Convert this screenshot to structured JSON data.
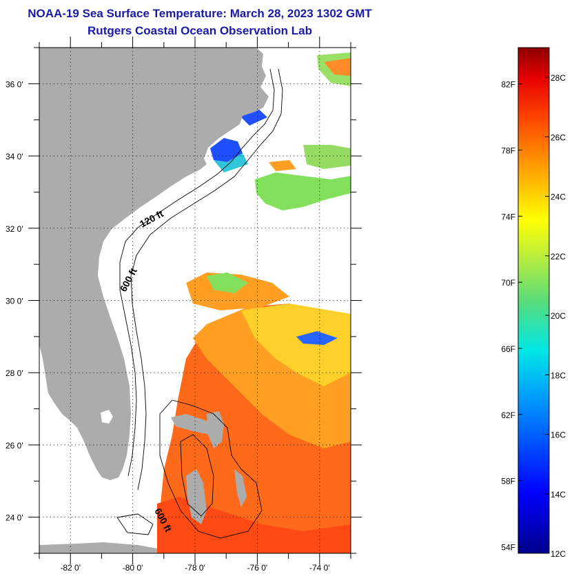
{
  "title": "NOAA-19 Sea Surface Temperature:  March 28, 2023 1302 GMT",
  "subtitle": "Rutgers Coastal Ocean Observation Lab",
  "map": {
    "lon_range": [
      -83,
      -73
    ],
    "lat_range": [
      23,
      37
    ],
    "lat_ticks": [
      {
        "value": 24,
        "label": "24 0'"
      },
      {
        "value": 26,
        "label": "26 0'"
      },
      {
        "value": 28,
        "label": "28 0'"
      },
      {
        "value": 30,
        "label": "30 0'"
      },
      {
        "value": 32,
        "label": "32 0'"
      },
      {
        "value": 34,
        "label": "34 0'"
      },
      {
        "value": 36,
        "label": "36 0'"
      }
    ],
    "lon_ticks": [
      {
        "value": -82,
        "label": "-82 0'"
      },
      {
        "value": -80,
        "label": "-80 0'"
      },
      {
        "value": -78,
        "label": "-78 0'"
      },
      {
        "value": -76,
        "label": "-76 0'"
      },
      {
        "value": -74,
        "label": "-74 0'"
      }
    ],
    "contour_labels": {
      "c120": "120 ft",
      "c600a": "600 ft",
      "c600b": "600 ft"
    },
    "colors": {
      "land": "#acacac",
      "warm": "#ff5a14",
      "mid": "#ffa01e",
      "cool": "#ffd21e",
      "green": "#78dc5a",
      "blue": "#1e50ff"
    }
  },
  "colorbar": {
    "range_c": [
      12,
      29
    ],
    "celsius_labels": [
      {
        "value": 12,
        "label": "12C"
      },
      {
        "value": 14,
        "label": "14C"
      },
      {
        "value": 16,
        "label": "16C"
      },
      {
        "value": 18,
        "label": "18C"
      },
      {
        "value": 20,
        "label": "20C"
      },
      {
        "value": 22,
        "label": "22C"
      },
      {
        "value": 24,
        "label": "24C"
      },
      {
        "value": 26,
        "label": "26C"
      },
      {
        "value": 28,
        "label": "28C"
      }
    ],
    "fahrenheit_labels": [
      {
        "value": 54,
        "label": "54F"
      },
      {
        "value": 58,
        "label": "58F"
      },
      {
        "value": 62,
        "label": "62F"
      },
      {
        "value": 66,
        "label": "66F"
      },
      {
        "value": 70,
        "label": "70F"
      },
      {
        "value": 74,
        "label": "74F"
      },
      {
        "value": 78,
        "label": "78F"
      },
      {
        "value": 82,
        "label": "82F"
      }
    ]
  }
}
